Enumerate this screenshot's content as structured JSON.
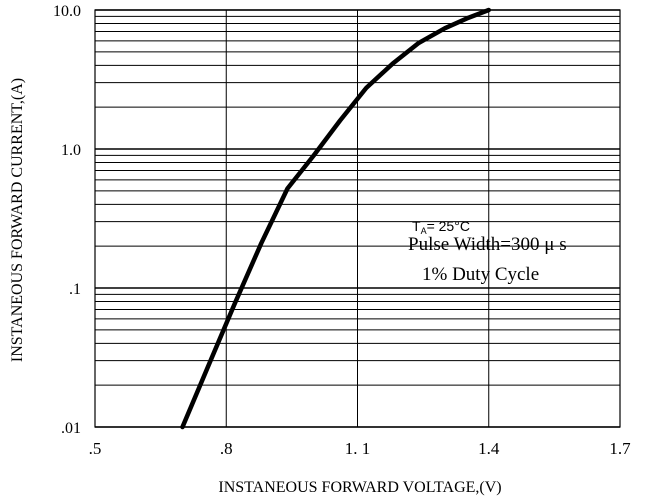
{
  "chart_data": {
    "type": "line",
    "xlabel": "INSTANEOUS FORWARD VOLTAGE,(V)",
    "ylabel": "INSTANEOUS FORWARD CURRENT,(A)",
    "x_scale": "linear",
    "y_scale": "log",
    "xlim": [
      0.5,
      1.7
    ],
    "ylim": [
      0.01,
      10.0
    ],
    "x_ticks": [
      0.5,
      0.8,
      1.1,
      1.4,
      1.7
    ],
    "x_tick_labels": [
      ".5",
      ".8",
      "1. 1",
      "1.4",
      "1.7"
    ],
    "y_ticks": [
      0.01,
      0.1,
      1.0,
      10.0
    ],
    "y_tick_labels": [
      ".01",
      ".1",
      "1.0",
      "10.0"
    ],
    "grid": true,
    "series": [
      {
        "x": [
          0.7,
          0.76,
          0.82,
          0.88,
          0.94,
          1.0,
          1.06,
          1.12,
          1.18,
          1.24,
          1.3,
          1.35,
          1.4
        ],
        "y": [
          0.01,
          0.028,
          0.078,
          0.21,
          0.52,
          0.9,
          1.6,
          2.75,
          4.1,
          5.8,
          7.4,
          8.7,
          10.0
        ]
      }
    ],
    "annotations": {
      "temp_main": "T",
      "temp_sub": "A",
      "temp_value": "= 25°C",
      "pulse": "Pulse Width=300 μ s",
      "duty": "1% Duty Cycle"
    }
  }
}
